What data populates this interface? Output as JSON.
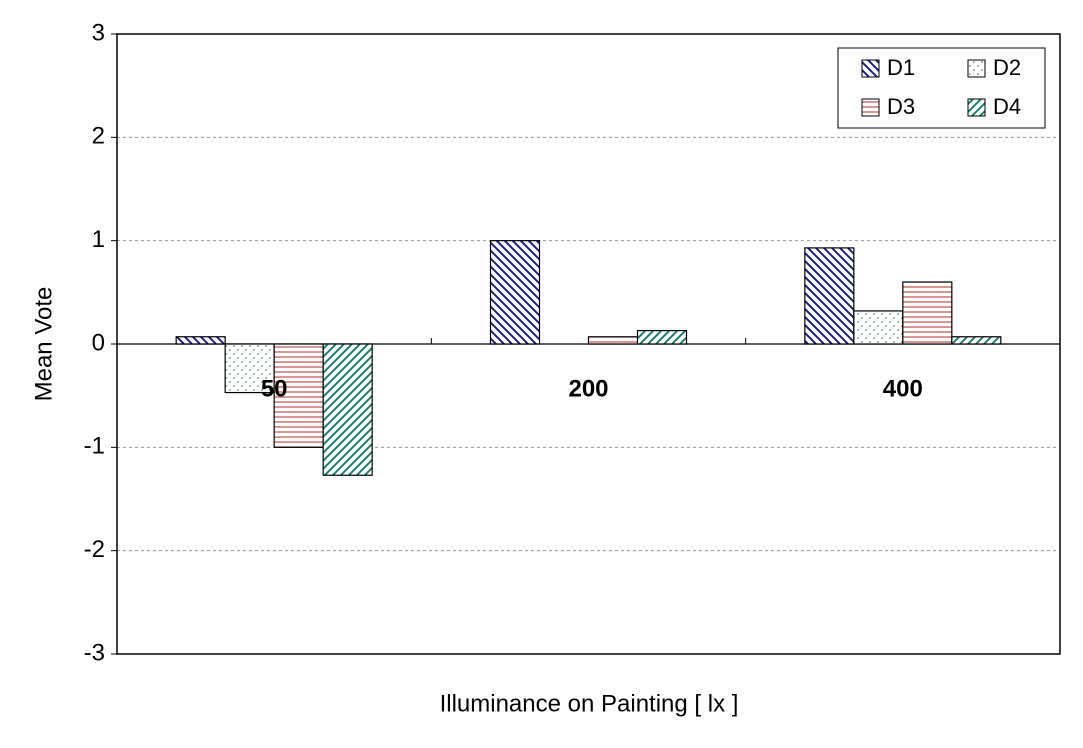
{
  "chart_data": {
    "type": "bar",
    "x_label": "Illuminance on Painting [ lx ]",
    "y_label": "Mean  Vote",
    "categories": [
      "50",
      "200",
      "400"
    ],
    "series": [
      {
        "name": "D1",
        "color": "#1c1c8c",
        "pattern": "diagonal-down",
        "values": [
          0.07,
          1.0,
          0.93
        ]
      },
      {
        "name": "D2",
        "color": "#2a6e66",
        "pattern": "dots",
        "values": [
          -0.47,
          0,
          0.32
        ]
      },
      {
        "name": "D3",
        "color": "#c0504d",
        "pattern": "horizontal",
        "values": [
          -1.0,
          0.07,
          0.6
        ]
      },
      {
        "name": "D4",
        "color": "#1a8070",
        "pattern": "diagonal-up",
        "values": [
          -1.27,
          0.13,
          0.07
        ]
      }
    ],
    "ylim": [
      -3,
      3
    ],
    "yticks": [
      -3,
      -2,
      -1,
      0,
      1,
      2,
      3
    ],
    "grid": true,
    "legend": "top-right"
  }
}
